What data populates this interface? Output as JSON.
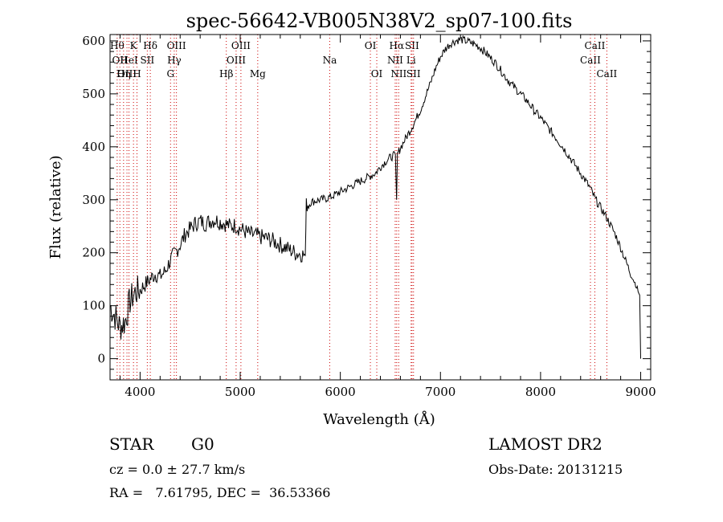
{
  "chart_data": {
    "type": "line",
    "title": "spec-56642-VB005N38V2_sp07-100.fits",
    "xlabel": "Wavelength (Å)",
    "ylabel": "Flux (relative)",
    "xlim": [
      3700,
      9100
    ],
    "ylim": [
      -40,
      612
    ],
    "xticks": [
      4000,
      5000,
      6000,
      7000,
      8000,
      9000
    ],
    "yticks": [
      0,
      100,
      200,
      300,
      400,
      500,
      600
    ],
    "line_color": "#000000",
    "marker_color": "#cc0000",
    "grid": false,
    "series": [
      {
        "x": [
          3700,
          3750,
          3800,
          3850,
          3900,
          3950,
          4000,
          4050,
          4100,
          4150,
          4200,
          4250,
          4300,
          4350,
          4400,
          4450,
          4500,
          4550,
          4600,
          4650,
          4700,
          4750,
          4800,
          4850,
          4900,
          4950,
          5000,
          5050,
          5100,
          5150,
          5200,
          5250,
          5300,
          5350,
          5400,
          5450,
          5500,
          5550,
          5600,
          5650,
          5660,
          5700,
          5750,
          5800,
          5850,
          5900,
          5950,
          6000,
          6050,
          6100,
          6150,
          6200,
          6250,
          6300,
          6350,
          6400,
          6450,
          6500,
          6550,
          6562,
          6570,
          6600,
          6650,
          6700,
          6750,
          6800,
          6850,
          6900,
          6950,
          7000,
          7050,
          7100,
          7150,
          7200,
          7250,
          7300,
          7350,
          7400,
          7450,
          7500,
          7550,
          7600,
          7650,
          7700,
          7750,
          7800,
          7850,
          7900,
          7950,
          8000,
          8050,
          8100,
          8150,
          8200,
          8250,
          8300,
          8350,
          8400,
          8450,
          8500,
          8550,
          8600,
          8650,
          8700,
          8750,
          8800,
          8850,
          8900,
          8950,
          8990,
          9000
        ],
        "y": [
          100,
          80,
          60,
          70,
          110,
          125,
          130,
          140,
          150,
          160,
          155,
          165,
          185,
          200,
          215,
          235,
          245,
          255,
          260,
          255,
          260,
          262,
          258,
          255,
          250,
          252,
          245,
          240,
          235,
          233,
          230,
          228,
          225,
          220,
          215,
          210,
          205,
          200,
          198,
          195,
          290,
          295,
          298,
          300,
          302,
          305,
          310,
          315,
          320,
          325,
          330,
          335,
          340,
          345,
          350,
          362,
          372,
          380,
          385,
          300,
          385,
          398,
          415,
          432,
          450,
          470,
          495,
          520,
          548,
          570,
          585,
          595,
          600,
          603,
          600,
          597,
          593,
          587,
          578,
          568,
          558,
          545,
          532,
          520,
          510,
          500,
          490,
          478,
          465,
          455,
          442,
          430,
          418,
          405,
          392,
          378,
          364,
          350,
          336,
          320,
          300,
          285,
          270,
          252,
          233,
          210,
          185,
          160,
          140,
          120,
          0
        ]
      }
    ],
    "line_markers": [
      {
        "x": 3771,
        "top": "Hθ",
        "row": 0
      },
      {
        "x": 3798,
        "top": "OII",
        "row": 1
      },
      {
        "x": 3835,
        "top": "Hη",
        "row": 2
      },
      {
        "x": 3869,
        "top": "OIII",
        "row": 2
      },
      {
        "x": 3889,
        "top": "HeI",
        "row": 1
      },
      {
        "x": 3934,
        "top": "K",
        "row": 0
      },
      {
        "x": 3969,
        "top": "H",
        "row": 2
      },
      {
        "x": 4072,
        "top": "SII",
        "row": 1
      },
      {
        "x": 4102,
        "top": "Hδ",
        "row": 0
      },
      {
        "x": 4304,
        "top": "G",
        "row": 2
      },
      {
        "x": 4341,
        "top": "Hγ",
        "row": 1
      },
      {
        "x": 4363,
        "top": "OIII",
        "row": 0
      },
      {
        "x": 4861,
        "top": "Hβ",
        "row": 2
      },
      {
        "x": 4959,
        "top": "OIII",
        "row": 1
      },
      {
        "x": 5007,
        "top": "OIII",
        "row": 0
      },
      {
        "x": 5175,
        "top": "Mg",
        "row": 2
      },
      {
        "x": 5894,
        "top": "Na",
        "row": 1
      },
      {
        "x": 6300,
        "top": "OI",
        "row": 0
      },
      {
        "x": 6364,
        "top": "OI",
        "row": 2
      },
      {
        "x": 6548,
        "top": "NII",
        "row": 1
      },
      {
        "x": 6563,
        "top": "Hα",
        "row": 0
      },
      {
        "x": 6583,
        "top": "NII",
        "row": 2
      },
      {
        "x": 6707,
        "top": "Li",
        "row": 1
      },
      {
        "x": 6716,
        "top": "SII",
        "row": 0
      },
      {
        "x": 6731,
        "top": "SII",
        "row": 2
      },
      {
        "x": 8498,
        "top": "CaII",
        "row": 1
      },
      {
        "x": 8542,
        "top": "CaII",
        "row": 0
      },
      {
        "x": 8662,
        "top": "CaII",
        "row": 2
      }
    ]
  },
  "footer": {
    "object_class": "STAR",
    "subclass": "G0",
    "survey": "LAMOST DR2",
    "cz": "cz = 0.0 ± 27.7 km/s",
    "obs_date": "Obs-Date: 20131215",
    "coords": "RA =   7.61795, DEC =  36.53366"
  }
}
